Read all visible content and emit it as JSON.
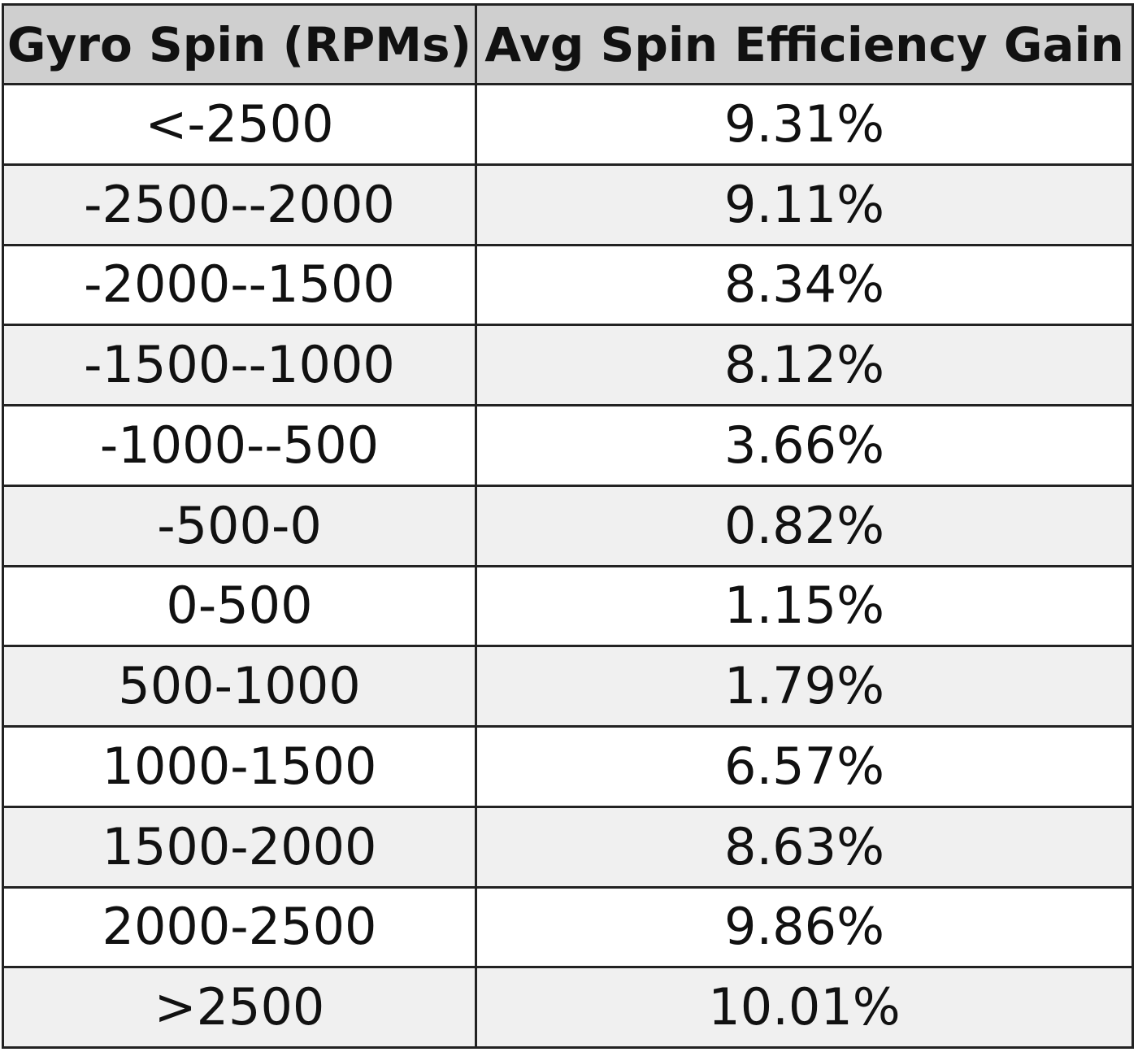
{
  "chart_data": {
    "type": "table",
    "columns": [
      "Gyro Spin (RPMs)",
      "Avg Spin Efficiency Gain"
    ],
    "rows": [
      [
        "<-2500",
        "9.31%"
      ],
      [
        "-2500--2000",
        "9.11%"
      ],
      [
        "-2000--1500",
        "8.34%"
      ],
      [
        "-1500--1000",
        "8.12%"
      ],
      [
        "-1000--500",
        "3.66%"
      ],
      [
        "-500-0",
        "0.82%"
      ],
      [
        "0-500",
        "1.15%"
      ],
      [
        "500-1000",
        "1.79%"
      ],
      [
        "1000-1500",
        "6.57%"
      ],
      [
        "1500-2000",
        "8.63%"
      ],
      [
        "2000-2500",
        "9.86%"
      ],
      [
        ">2500",
        "10.01%"
      ]
    ],
    "values": [
      9.31,
      9.11,
      8.34,
      8.12,
      3.66,
      0.82,
      1.15,
      1.79,
      6.57,
      8.63,
      9.86,
      10.01
    ]
  },
  "colors": {
    "header_bg": "#cfcfcf",
    "row_alt_bg": "#f0f0f0",
    "border": "#222222"
  }
}
